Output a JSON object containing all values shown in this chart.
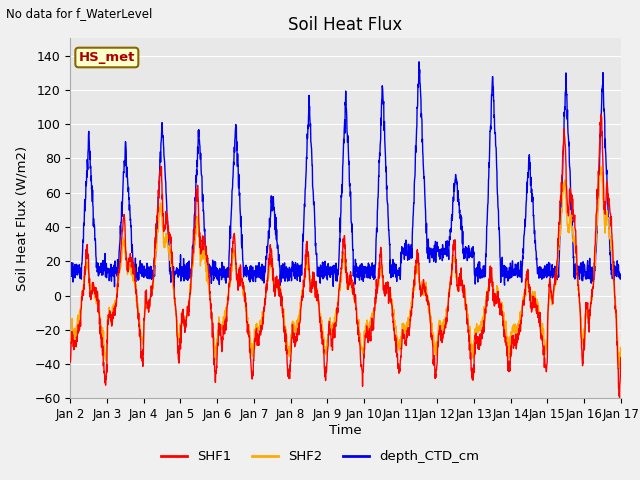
{
  "title": "Soil Heat Flux",
  "ylabel": "Soil Heat Flux (W/m2)",
  "xlabel": "Time",
  "top_left_text": "No data for f_WaterLevel",
  "station_label": "HS_met",
  "ylim": [
    -60,
    150
  ],
  "yticks": [
    -60,
    -40,
    -20,
    0,
    20,
    40,
    60,
    80,
    100,
    120,
    140
  ],
  "background_color": "#f0f0f0",
  "plot_bg_color": "#e8e8e8",
  "grid_color": "#ffffff",
  "legend_items": [
    "SHF1",
    "SHF2",
    "depth_CTD_cm"
  ],
  "legend_colors": [
    "#ff0000",
    "#ffaa00",
    "#0000ee"
  ],
  "shf1_color": "#ff0000",
  "shf2_color": "#ffaa00",
  "depth_color": "#0000ee",
  "num_days": 15,
  "points_per_day": 144
}
